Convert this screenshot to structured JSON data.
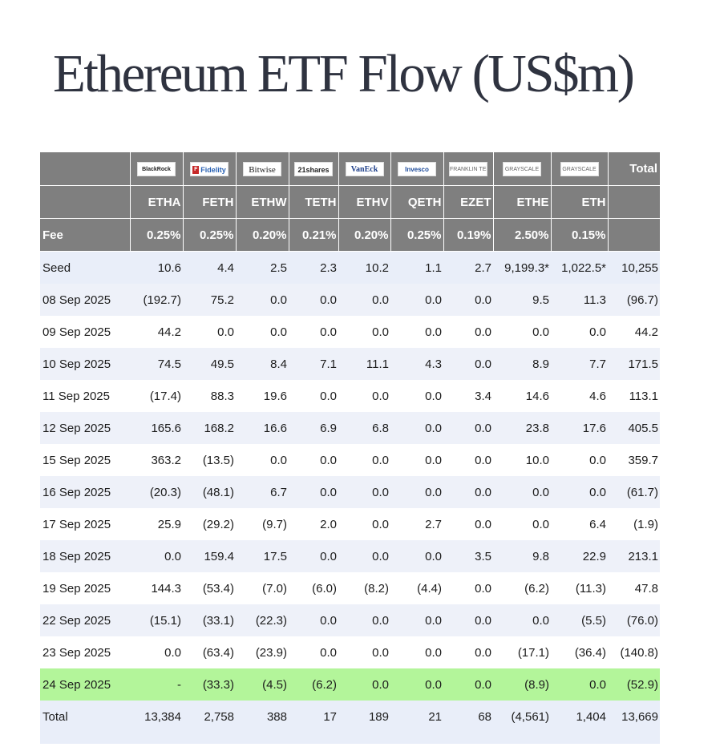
{
  "title": "Ethereum ETF Flow (US$m)",
  "columns": [
    {
      "logo": "BlackRock",
      "ticker": "ETHA",
      "fee": "0.25%",
      "logo_style": ""
    },
    {
      "logo": "Fidelity",
      "ticker": "FETH",
      "fee": "0.25%",
      "logo_style": "fidelity"
    },
    {
      "logo": "Bitwise",
      "ticker": "ETHW",
      "fee": "0.20%",
      "logo_style": "bitwise"
    },
    {
      "logo": "21shares",
      "ticker": "TETH",
      "fee": "0.21%",
      "logo_style": "s21"
    },
    {
      "logo": "VanEck",
      "ticker": "ETHV",
      "fee": "0.20%",
      "logo_style": "vaneck"
    },
    {
      "logo": "Invesco",
      "ticker": "QETH",
      "fee": "0.25%",
      "logo_style": "invesco"
    },
    {
      "logo": "FRANKLIN TEMPLETON",
      "ticker": "EZET",
      "fee": "0.19%",
      "logo_style": "gray"
    },
    {
      "logo": "GRAYSCALE",
      "ticker": "ETHE",
      "fee": "2.50%",
      "logo_style": "gray"
    },
    {
      "logo": "GRAYSCALE",
      "ticker": "ETH",
      "fee": "0.15%",
      "logo_style": "gray"
    }
  ],
  "total_header": "Total",
  "fee_label": "Fee",
  "rows": [
    {
      "label": "Seed",
      "type": "seed",
      "values": [
        "10.6",
        "4.4",
        "2.5",
        "2.3",
        "10.2",
        "1.1",
        "2.7",
        "9,199.3*",
        "1,022.5*",
        "10,255"
      ]
    },
    {
      "label": "08 Sep 2025",
      "type": "",
      "values": [
        "(192.7)",
        "75.2",
        "0.0",
        "0.0",
        "0.0",
        "0.0",
        "0.0",
        "9.5",
        "11.3",
        "(96.7)"
      ]
    },
    {
      "label": "09 Sep 2025",
      "type": "",
      "values": [
        "44.2",
        "0.0",
        "0.0",
        "0.0",
        "0.0",
        "0.0",
        "0.0",
        "0.0",
        "0.0",
        "44.2"
      ]
    },
    {
      "label": "10 Sep 2025",
      "type": "",
      "values": [
        "74.5",
        "49.5",
        "8.4",
        "7.1",
        "11.1",
        "4.3",
        "0.0",
        "8.9",
        "7.7",
        "171.5"
      ]
    },
    {
      "label": "11 Sep 2025",
      "type": "",
      "values": [
        "(17.4)",
        "88.3",
        "19.6",
        "0.0",
        "0.0",
        "0.0",
        "3.4",
        "14.6",
        "4.6",
        "113.1"
      ]
    },
    {
      "label": "12 Sep 2025",
      "type": "",
      "values": [
        "165.6",
        "168.2",
        "16.6",
        "6.9",
        "6.8",
        "0.0",
        "0.0",
        "23.8",
        "17.6",
        "405.5"
      ]
    },
    {
      "label": "15 Sep 2025",
      "type": "",
      "values": [
        "363.2",
        "(13.5)",
        "0.0",
        "0.0",
        "0.0",
        "0.0",
        "0.0",
        "10.0",
        "0.0",
        "359.7"
      ]
    },
    {
      "label": "16 Sep 2025",
      "type": "",
      "values": [
        "(20.3)",
        "(48.1)",
        "6.7",
        "0.0",
        "0.0",
        "0.0",
        "0.0",
        "0.0",
        "0.0",
        "(61.7)"
      ]
    },
    {
      "label": "17 Sep 2025",
      "type": "",
      "values": [
        "25.9",
        "(29.2)",
        "(9.7)",
        "2.0",
        "0.0",
        "2.7",
        "0.0",
        "0.0",
        "6.4",
        "(1.9)"
      ]
    },
    {
      "label": "18 Sep 2025",
      "type": "",
      "values": [
        "0.0",
        "159.4",
        "17.5",
        "0.0",
        "0.0",
        "0.0",
        "3.5",
        "9.8",
        "22.9",
        "213.1"
      ]
    },
    {
      "label": "19 Sep 2025",
      "type": "",
      "values": [
        "144.3",
        "(53.4)",
        "(7.0)",
        "(6.0)",
        "(8.2)",
        "(4.4)",
        "0.0",
        "(6.2)",
        "(11.3)",
        "47.8"
      ]
    },
    {
      "label": "22 Sep 2025",
      "type": "",
      "values": [
        "(15.1)",
        "(33.1)",
        "(22.3)",
        "0.0",
        "0.0",
        "0.0",
        "0.0",
        "0.0",
        "(5.5)",
        "(76.0)"
      ]
    },
    {
      "label": "23 Sep 2025",
      "type": "",
      "values": [
        "0.0",
        "(63.4)",
        "(23.9)",
        "0.0",
        "0.0",
        "0.0",
        "0.0",
        "(17.1)",
        "(36.4)",
        "(140.8)"
      ]
    },
    {
      "label": "24 Sep 2025",
      "type": "highlight",
      "values": [
        "-",
        "(33.3)",
        "(4.5)",
        "(6.2)",
        "0.0",
        "0.0",
        "0.0",
        "(8.9)",
        "0.0",
        "(52.9)"
      ]
    },
    {
      "label": "Total",
      "type": "total",
      "values": [
        "13,384",
        "2,758",
        "388",
        "17",
        "189",
        "21",
        "68",
        "(4,561)",
        "1,404",
        "13,669"
      ]
    }
  ]
}
